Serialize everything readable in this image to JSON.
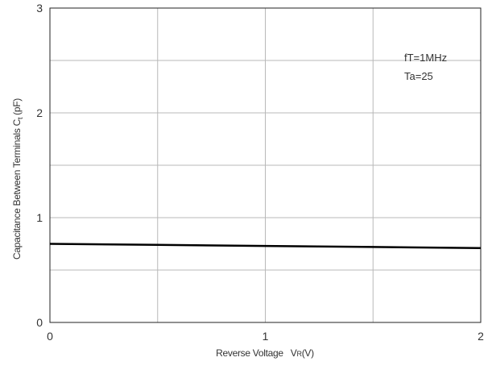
{
  "chart_data": {
    "type": "line",
    "title": "",
    "xlabel": "Reverse Voltage",
    "xlabel_symbol": "V",
    "xlabel_subscript": "R",
    "xlabel_unit": "(V)",
    "ylabel": "Capacitance Between Terminals C",
    "ylabel_subscript": "t",
    "ylabel_unit": "(pF)",
    "xlim": [
      0,
      2
    ],
    "ylim": [
      0,
      3
    ],
    "x_ticks": [
      0,
      1,
      2
    ],
    "x_tick_labels": [
      "0",
      "1",
      "2"
    ],
    "y_ticks": [
      0,
      1,
      2,
      3
    ],
    "y_tick_labels": [
      "0",
      "1",
      "2",
      "3"
    ],
    "grid": true,
    "grid_x_step": 0.5,
    "grid_y_step": 0.5,
    "annotations": [
      "fT=1MHz",
      "Ta=25"
    ],
    "series": [
      {
        "x": [
          0,
          0.5,
          1,
          1.5,
          2
        ],
        "y": [
          0.75,
          0.74,
          0.73,
          0.72,
          0.71
        ],
        "color": "#000000"
      }
    ]
  }
}
